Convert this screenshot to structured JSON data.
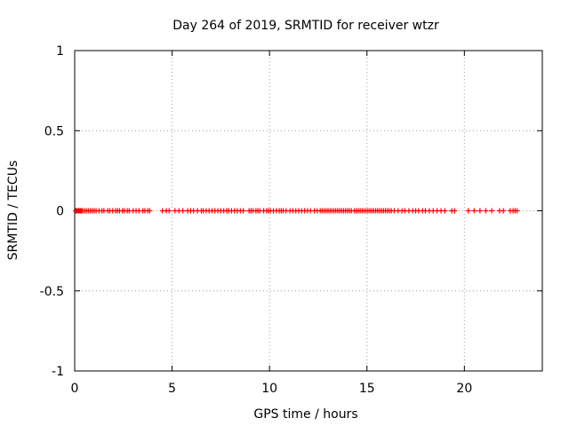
{
  "chart_data": {
    "type": "scatter",
    "title": "Day 264 of 2019, SRMTID for receiver wtzr",
    "xlabel": "GPS time / hours",
    "ylabel": "SRMTID / TECUs",
    "xlim": [
      0,
      24
    ],
    "ylim": [
      -1,
      1
    ],
    "xticks": [
      0,
      5,
      10,
      15,
      20
    ],
    "xtick_labels": [
      "0",
      "5",
      "10",
      "15",
      "20"
    ],
    "yticks": [
      1,
      0.5,
      0,
      -0.5,
      -1
    ],
    "ytick_labels": [
      "1",
      "0.5",
      "0",
      "-0.5",
      "-1"
    ],
    "grid": true,
    "marker": "+",
    "colors": {
      "points": "#ff0000",
      "grid": "#a0a0a0",
      "axes": "#000000"
    },
    "series": [
      {
        "name": "SRMTID",
        "y_value": 0,
        "x": [
          0.05,
          0.1,
          0.15,
          0.2,
          0.25,
          0.3,
          0.35,
          0.4,
          0.5,
          0.6,
          0.7,
          0.8,
          0.9,
          1.0,
          1.1,
          1.25,
          1.4,
          1.5,
          1.7,
          1.8,
          1.95,
          2.1,
          2.2,
          2.3,
          2.45,
          2.55,
          2.7,
          2.8,
          3.0,
          3.15,
          3.3,
          3.5,
          3.6,
          3.75,
          3.85,
          4.5,
          4.7,
          4.85,
          5.15,
          5.35,
          5.55,
          5.8,
          5.95,
          6.1,
          6.3,
          6.5,
          6.6,
          6.75,
          6.9,
          7.05,
          7.2,
          7.35,
          7.5,
          7.65,
          7.8,
          7.9,
          8.05,
          8.2,
          8.35,
          8.5,
          8.65,
          8.95,
          9.05,
          9.15,
          9.3,
          9.4,
          9.5,
          9.7,
          9.85,
          9.95,
          10.05,
          10.2,
          10.35,
          10.5,
          10.6,
          10.7,
          10.85,
          11.05,
          11.2,
          11.35,
          11.5,
          11.65,
          11.8,
          11.95,
          12.1,
          12.3,
          12.45,
          12.6,
          12.7,
          12.8,
          12.9,
          13.0,
          13.1,
          13.2,
          13.3,
          13.4,
          13.5,
          13.6,
          13.7,
          13.8,
          13.9,
          14.0,
          14.1,
          14.2,
          14.35,
          14.45,
          14.55,
          14.65,
          14.75,
          14.85,
          14.95,
          15.05,
          15.15,
          15.25,
          15.35,
          15.45,
          15.55,
          15.65,
          15.75,
          15.85,
          15.95,
          16.05,
          16.15,
          16.25,
          16.4,
          16.6,
          16.8,
          16.95,
          17.15,
          17.35,
          17.5,
          17.65,
          17.85,
          18.0,
          18.2,
          18.4,
          18.6,
          18.8,
          19.0,
          19.35,
          19.5,
          20.2,
          20.5,
          20.8,
          21.1,
          21.4,
          21.8,
          22.0,
          22.35,
          22.5,
          22.6,
          22.7
        ]
      }
    ]
  }
}
